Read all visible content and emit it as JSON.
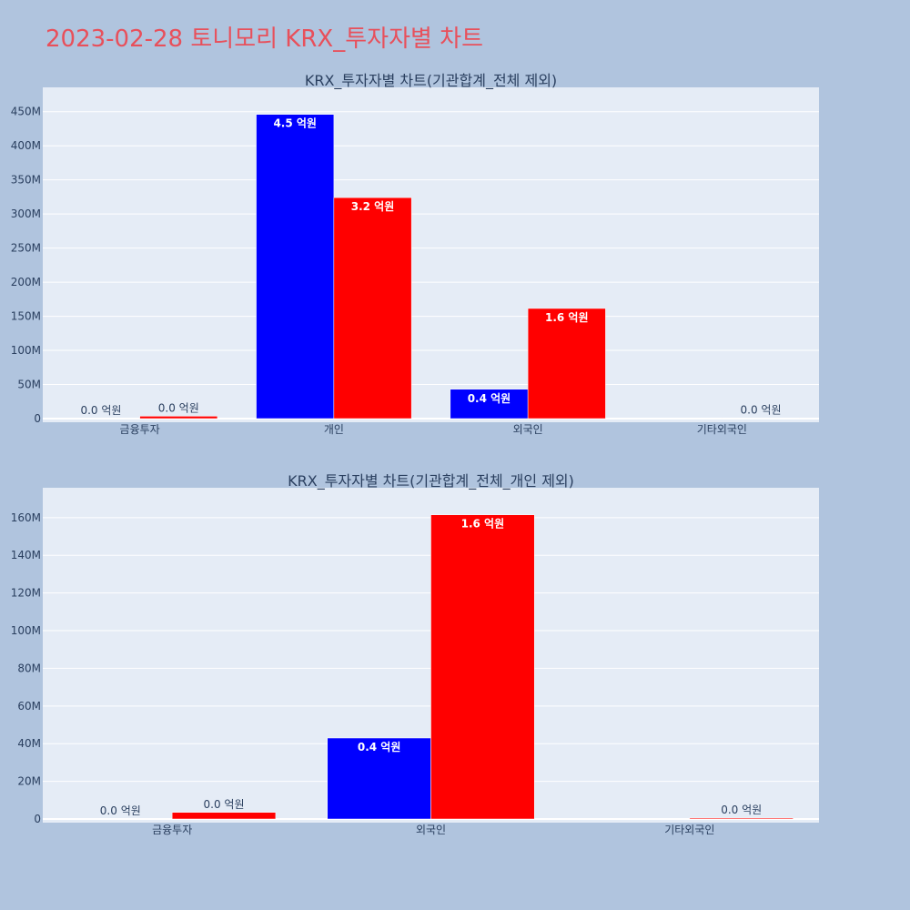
{
  "page": {
    "title": "2023-02-28 토니모리 KRX_투자자별 차트"
  },
  "colors": {
    "background": "#b0c4de",
    "plot_bg": "#e5ecf6",
    "series_a": "#0000ff",
    "series_b": "#ff0000",
    "title": "#e8505b"
  },
  "chart_data": [
    {
      "type": "bar",
      "title": "KRX_투자자별 차트(기관합계_전체 제외)",
      "categories": [
        "금융투자",
        "개인",
        "외국인",
        "기타외국인"
      ],
      "series": [
        {
          "color": "#0000ff",
          "values": [
            0,
            446000000,
            43000000,
            0
          ],
          "labels": [
            "0.0 억원",
            "4.5 억원",
            "0.4 억원",
            ""
          ]
        },
        {
          "color": "#ff0000",
          "values": [
            3500000,
            324000000,
            161500000,
            500000
          ],
          "labels": [
            "0.0 억원",
            "3.2 억원",
            "1.6 억원",
            "0.0 억원"
          ]
        }
      ],
      "ylim": [
        0,
        475000000
      ],
      "yticks": [
        0,
        50000000,
        100000000,
        150000000,
        200000000,
        250000000,
        300000000,
        350000000,
        400000000,
        450000000
      ],
      "ytick_labels": [
        "0",
        "50M",
        "100M",
        "150M",
        "200M",
        "250M",
        "300M",
        "350M",
        "400M",
        "450M"
      ],
      "grid": true
    },
    {
      "type": "bar",
      "title": "KRX_투자자별 차트(기관합계_전체_개인 제외)",
      "categories": [
        "금융투자",
        "외국인",
        "기타외국인"
      ],
      "series": [
        {
          "color": "#0000ff",
          "values": [
            0,
            43000000,
            0
          ],
          "labels": [
            "0.0 억원",
            "0.4 억원",
            ""
          ]
        },
        {
          "color": "#ff0000",
          "values": [
            3500000,
            161500000,
            500000
          ],
          "labels": [
            "0.0 억원",
            "1.6 억원",
            "0.0 억원"
          ]
        }
      ],
      "ylim": [
        0,
        172000000
      ],
      "yticks": [
        0,
        20000000,
        40000000,
        60000000,
        80000000,
        100000000,
        120000000,
        140000000,
        160000000
      ],
      "ytick_labels": [
        "0",
        "20M",
        "40M",
        "60M",
        "80M",
        "100M",
        "120M",
        "140M",
        "160M"
      ],
      "grid": true
    }
  ]
}
